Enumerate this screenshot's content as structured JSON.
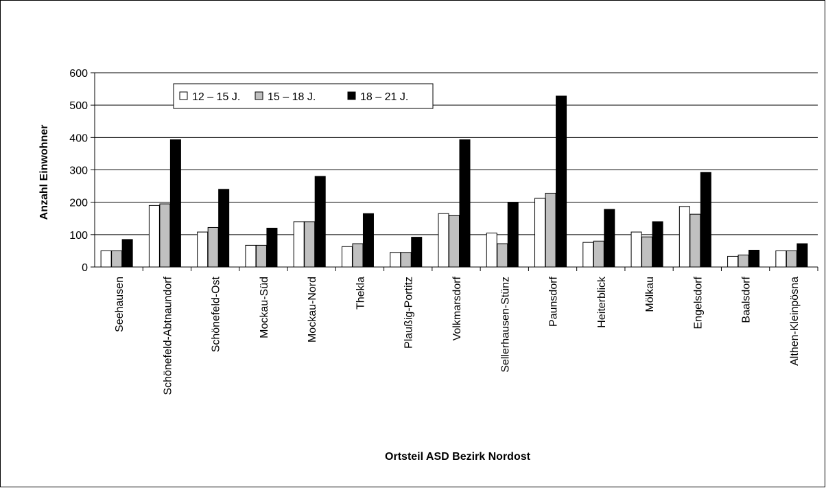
{
  "chart_data": {
    "type": "bar",
    "title": "",
    "xlabel": "Ortsteil ASD Bezirk Nordost",
    "ylabel": "Anzahl Einwohner",
    "ylim": [
      0,
      600
    ],
    "yticks": [
      "0",
      "100",
      "200",
      "300",
      "400",
      "500",
      "600"
    ],
    "grid": true,
    "legend_position": "top-left",
    "categories": [
      "Seehausen",
      "Schönefeld-Abtnaundorf",
      "Schönefeld-Ost",
      "Mockau-Süd",
      "Mockau-Nord",
      "Thekla",
      "Plaußig-Portitz",
      "Volkmarsdorf",
      "Sellerhausen-Stünz",
      "Paunsdorf",
      "Heiterblick",
      "Mölkau",
      "Engelsdorf",
      "Baalsdorf",
      "Althen-Kleinpösna"
    ],
    "series": [
      {
        "name": "12 – 15 J.",
        "color": "#ffffff",
        "values": [
          50,
          190,
          108,
          67,
          140,
          63,
          45,
          165,
          105,
          212,
          76,
          108,
          187,
          33,
          50
        ]
      },
      {
        "name": "15 – 18 J.",
        "color": "#c0c0c0",
        "values": [
          50,
          195,
          122,
          67,
          140,
          72,
          45,
          160,
          72,
          228,
          80,
          93,
          163,
          37,
          50
        ]
      },
      {
        "name": "18 – 21 J.",
        "color": "#000000",
        "values": [
          85,
          393,
          240,
          120,
          280,
          165,
          92,
          393,
          200,
          528,
          178,
          140,
          292,
          52,
          72
        ]
      }
    ]
  }
}
